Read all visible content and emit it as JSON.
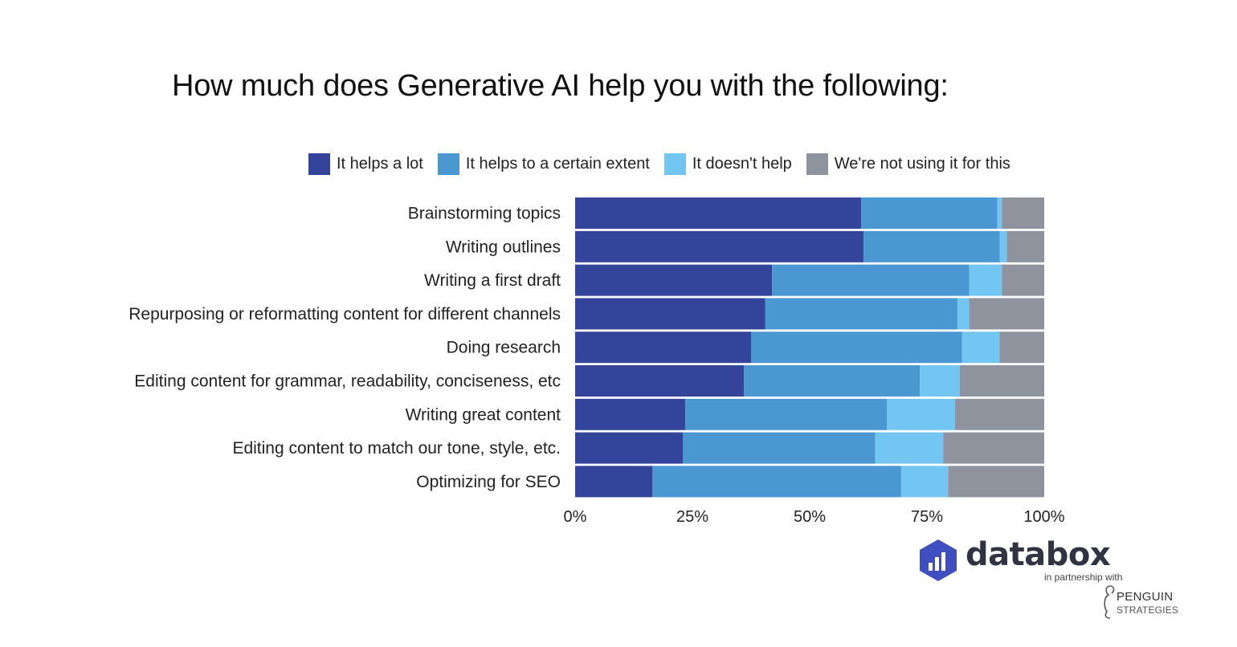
{
  "chart_data": {
    "type": "bar",
    "orientation": "horizontal",
    "stacked": "percent",
    "title": "How much does Generative AI help you with the following:",
    "categories": [
      "Brainstorming topics",
      "Writing outlines",
      "Writing a first draft",
      "Repurposing or reformatting content for different channels",
      "Doing research",
      "Editing content for grammar, readability, conciseness, etc",
      "Writing great content",
      "Editing content to match our tone, style, etc.",
      "Optimizing for SEO"
    ],
    "series": [
      {
        "name": "It helps a lot",
        "color": "#34449b",
        "values": [
          61,
          61.5,
          42,
          40.5,
          37.5,
          36,
          23.5,
          23,
          16.5
        ]
      },
      {
        "name": "It helps to a certain extent",
        "color": "#4a97d2",
        "values": [
          29,
          29,
          42,
          41,
          45,
          37.5,
          43,
          41,
          53
        ]
      },
      {
        "name": "It doesn't help",
        "color": "#72c6f1",
        "values": [
          1,
          1.5,
          7,
          2.5,
          8,
          8.5,
          14.5,
          14.5,
          10
        ]
      },
      {
        "name": "We're not using it for this",
        "color": "#8f939e",
        "values": [
          9,
          8,
          9,
          16,
          9.5,
          18,
          19,
          21.5,
          20.5
        ]
      }
    ],
    "x_ticks": [
      "0%",
      "25%",
      "50%",
      "75%",
      "100%"
    ],
    "xlim": [
      0,
      100
    ],
    "legend_position": "top",
    "grid": false
  },
  "branding": {
    "name": "databox",
    "partner_text": "in partnership with",
    "partner_line1": "PENGUIN",
    "partner_line2": "STRATEGIES",
    "logo_icon": "databox-hexagon-logo",
    "partner_icon": "penguin-logo"
  }
}
